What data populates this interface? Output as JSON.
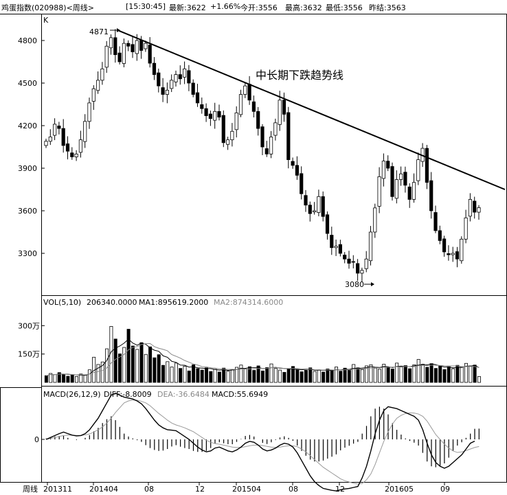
{
  "header": {
    "title": "鸡蛋指数(020988)<周线>",
    "time": "[15:30:45]",
    "latest": "最新:3622",
    "change": "+1.66%",
    "open": "今开:3556",
    "high": "最高:3632",
    "low": "最低:3556",
    "prev_close": "昨结:3563"
  },
  "chart_data": [
    {
      "type": "candlestick",
      "panel": "price",
      "corner_label": "K",
      "y_ticks": [
        4800,
        4500,
        4200,
        3900,
        3600,
        3300
      ],
      "ylim": [
        3050,
        4980
      ],
      "annotations": {
        "high_label": "4871",
        "low_label": "3080",
        "trendline_label": "中长期下跌趋势线",
        "trendline": [
          {
            "x_index": 0,
            "value": 4871
          },
          {
            "x_index": 100,
            "value": 3750
          }
        ]
      },
      "close_series": [
        4090,
        4120,
        4210,
        4180,
        4060,
        4020,
        3980,
        4000,
        4100,
        4230,
        4360,
        4460,
        4520,
        4600,
        4760,
        4820,
        4700,
        4650,
        4780,
        4760,
        4720,
        4800,
        4730,
        4780,
        4640,
        4560,
        4480,
        4420,
        4450,
        4520,
        4560,
        4530,
        4600,
        4500,
        4420,
        4360,
        4320,
        4270,
        4250,
        4300,
        4260,
        4080,
        4100,
        4160,
        4290,
        4420,
        4480,
        4380,
        4300,
        4180,
        4050,
        4000,
        4120,
        4220,
        4380,
        4280,
        3960,
        3920,
        3850,
        3720,
        3640,
        3580,
        3600,
        3700,
        3560,
        3440,
        3340,
        3350,
        3300,
        3260,
        3230,
        3240,
        3160,
        3180,
        3260,
        3450,
        3620,
        3840,
        3950,
        3900,
        3700,
        3820,
        3860,
        3780,
        3680,
        3800,
        3960,
        4040,
        3800,
        3600,
        3460,
        3390,
        3310,
        3290,
        3300,
        3260,
        3400,
        3550,
        3680,
        3590,
        3622
      ]
    },
    {
      "type": "bar",
      "panel": "volume",
      "legend": {
        "label": "VOL(5,10)",
        "value": "206340.0000",
        "ma1": "MA1:895619.2000",
        "ma2": "MA2:874314.6000"
      },
      "y_ticks": [
        "300万",
        "150万"
      ],
      "y_tick_values": [
        3000000,
        1500000
      ],
      "ylim": [
        0,
        4000000
      ],
      "values": [
        2.4,
        3.2,
        2.8,
        3.5,
        2.9,
        2.2,
        2.6,
        2.1,
        3.0,
        2.7,
        4.5,
        9.0,
        6.4,
        7.3,
        12.0,
        20.0,
        15.5,
        10.2,
        12.5,
        19.0,
        13.0,
        11.8,
        14.2,
        10.0,
        12.7,
        8.8,
        9.9,
        6.1,
        7.4,
        5.5,
        6.9,
        5.0,
        5.8,
        4.1,
        6.3,
        4.9,
        4.4,
        5.2,
        3.9,
        4.7,
        3.7,
        5.1,
        4.0,
        4.6,
        5.4,
        6.2,
        4.8,
        5.6,
        4.3,
        5.9,
        4.1,
        5.3,
        6.6,
        5.0,
        4.4,
        3.6,
        4.9,
        5.7,
        4.6,
        3.8,
        4.3,
        5.2,
        3.9,
        4.5,
        3.7,
        4.8,
        4.2,
        5.5,
        4.0,
        5.1,
        4.3,
        6.4,
        5.2,
        4.6,
        5.9,
        6.3,
        5.1,
        4.7,
        6.5,
        5.4,
        4.8,
        6.9,
        5.5,
        6.0,
        4.9,
        6.3,
        8.2,
        6.5,
        5.4,
        6.7,
        5.0,
        5.8,
        4.6,
        5.6,
        4.9,
        6.1,
        5.5,
        6.8,
        5.9,
        6.2,
        2.1
      ]
    },
    {
      "type": "line",
      "panel": "macd",
      "legend": {
        "label": "MACD(26,12,9)",
        "diff": "DIFF:-8.8009",
        "dea": "DEA:-36.6484",
        "macd": "MACD:55.6949"
      },
      "y_ticks": [
        0
      ],
      "ylim": [
        -320,
        320
      ],
      "diff": [
        0,
        10,
        20,
        30,
        38,
        30,
        22,
        18,
        20,
        30,
        50,
        80,
        110,
        150,
        190,
        230,
        240,
        230,
        220,
        215,
        210,
        200,
        185,
        160,
        130,
        100,
        75,
        60,
        50,
        48,
        45,
        30,
        15,
        0,
        -20,
        -40,
        -55,
        -65,
        -60,
        -45,
        -40,
        -50,
        -60,
        -65,
        -55,
        -40,
        -20,
        -10,
        -15,
        -30,
        -50,
        -60,
        -55,
        -45,
        -30,
        -20,
        -25,
        -40,
        -70,
        -110,
        -150,
        -190,
        -220,
        -240,
        -255,
        -260,
        -265,
        -268,
        -262,
        -258,
        -255,
        -250,
        -245,
        -200,
        -140,
        -60,
        30,
        100,
        150,
        170,
        165,
        160,
        150,
        140,
        130,
        120,
        100,
        50,
        -20,
        -80,
        -120,
        -140,
        -150,
        -140,
        -120,
        -100,
        -80,
        -50,
        -20,
        -9
      ],
      "dea": [
        0,
        5,
        10,
        15,
        20,
        22,
        22,
        21,
        20,
        23,
        28,
        38,
        50,
        65,
        85,
        110,
        140,
        165,
        190,
        200,
        205,
        204,
        198,
        190,
        175,
        155,
        135,
        118,
        100,
        85,
        75,
        68,
        60,
        50,
        40,
        25,
        10,
        -5,
        -15,
        -22,
        -25,
        -30,
        -35,
        -40,
        -42,
        -42,
        -38,
        -33,
        -30,
        -30,
        -32,
        -36,
        -40,
        -42,
        -40,
        -36,
        -33,
        -33,
        -38,
        -50,
        -65,
        -85,
        -105,
        -125,
        -145,
        -160,
        -175,
        -190,
        -205,
        -215,
        -222,
        -228,
        -232,
        -230,
        -210,
        -180,
        -130,
        -70,
        -10,
        40,
        80,
        110,
        125,
        135,
        138,
        137,
        132,
        120,
        95,
        60,
        25,
        0,
        -25,
        -45,
        -60,
        -68,
        -65,
        -58,
        -50,
        -42,
        -37
      ],
      "macd": [
        5,
        10,
        15,
        18,
        18,
        8,
        0,
        -3,
        0,
        8,
        22,
        42,
        60,
        85,
        105,
        120,
        100,
        65,
        30,
        15,
        5,
        -4,
        -13,
        -30,
        -45,
        -55,
        -60,
        -58,
        -50,
        -37,
        -30,
        -38,
        -45,
        -50,
        -60,
        -65,
        -65,
        -60,
        -45,
        -23,
        -15,
        -20,
        -25,
        -25,
        -13,
        2,
        18,
        23,
        15,
        0,
        -18,
        -24,
        -15,
        -3,
        10,
        16,
        8,
        -7,
        -32,
        -60,
        -85,
        -105,
        -115,
        -115,
        -110,
        -100,
        -90,
        -78,
        -57,
        -43,
        -33,
        -22,
        -13,
        30,
        70,
        120,
        160,
        170,
        160,
        130,
        85,
        50,
        25,
        5,
        -8,
        -17,
        -32,
        -70,
        -115,
        -140,
        -145,
        -140,
        -125,
        -95,
        -60,
        -32,
        -15,
        8,
        30,
        55,
        56
      ],
      "x_ticks": [
        "201311",
        "201404",
        "08",
        "12",
        "201504",
        "08",
        "12",
        "201605",
        "09"
      ],
      "x_tick_indices": [
        1,
        17,
        37,
        58,
        73,
        94,
        111,
        130,
        145
      ],
      "x_axis_label": "周线"
    }
  ]
}
